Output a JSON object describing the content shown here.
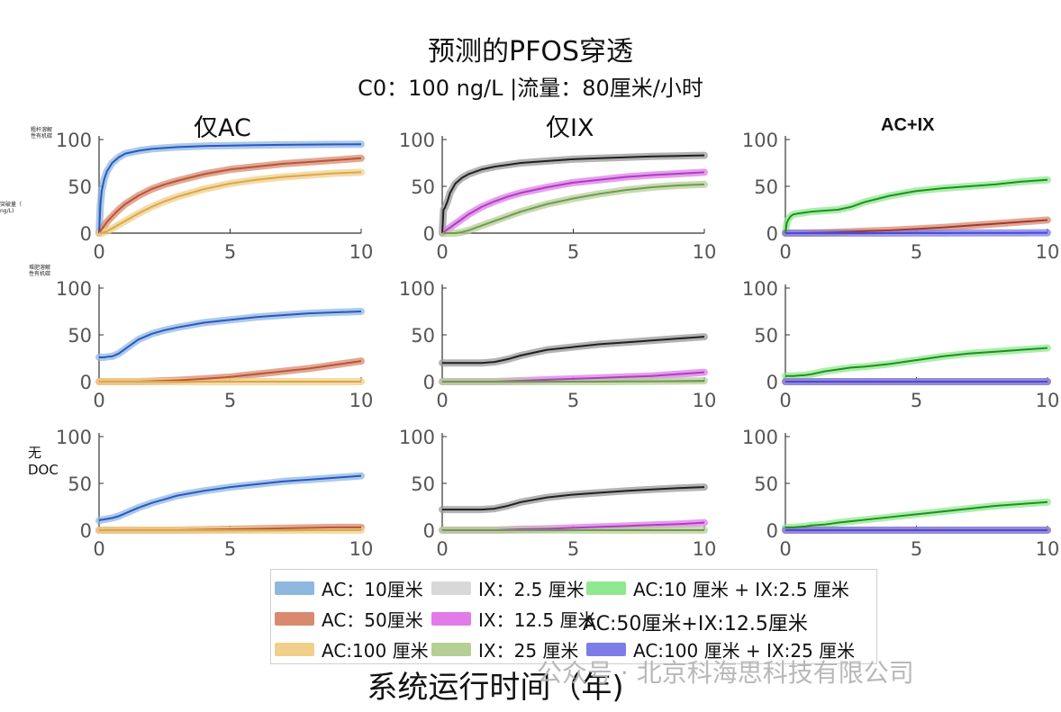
{
  "title": "预测的PFOS穿透",
  "subtitle": "C0：100 ng/L |流量：80厘米/小时",
  "column_titles": [
    "仅AC",
    "仅IX",
    "AC+IX"
  ],
  "row_notes": [
    "粗杆溶解\n性有机碳",
    "突破量（\nng/L)",
    "堆肥溶解\n性有机碳"
  ],
  "row_label_none": "无\nDOC",
  "xlabel": "系统运行时间（年)",
  "watermark": "公众号 · 北京科海思科技有限公司",
  "legend": [
    {
      "label": "AC：10厘米",
      "color": "#8fb8de"
    },
    {
      "label": "AC：50厘米",
      "color": "#d98a6e"
    },
    {
      "label": "AC:100 厘米",
      "color": "#f0cf8a"
    },
    {
      "label": "IX：2.5 厘米",
      "color": "#d8d8d8"
    },
    {
      "label": "IX：12.5 厘米",
      "color": "#e07be8"
    },
    {
      "label": "IX：25 厘米",
      "color": "#b5cf95"
    },
    {
      "label": "AC:10 厘米 + IX:2.5 厘米",
      "color": "#8fe88f"
    },
    {
      "label": "AC:50厘米+IX:12.5厘米",
      "color": "#ffffff"
    },
    {
      "label": "AC:100 厘米 + IX:25 厘米",
      "color": "#7d7de8"
    }
  ],
  "chart_data": {
    "type": "line",
    "x": [
      0,
      0.05,
      0.1,
      0.2,
      0.3,
      0.5,
      0.75,
      1,
      1.5,
      2,
      2.5,
      3,
      4,
      5,
      6,
      7,
      8,
      9,
      10
    ],
    "xlim": [
      0,
      10
    ],
    "ylim": [
      0,
      100
    ],
    "xticks": [
      0,
      5,
      10
    ],
    "yticks": [
      0,
      50,
      100
    ],
    "xlabel": "系统运行时间（年)",
    "panels": [
      {
        "row": 0,
        "col": 0,
        "series": [
          {
            "name": "AC：10厘米",
            "color": "#2a55c8",
            "band": "#8fb8de",
            "values": [
              0,
              30,
              45,
              58,
              66,
              75,
              81,
              85,
              88,
              90,
              91,
              92,
              93,
              93.5,
              94,
              94.3,
              94.6,
              94.8,
              95
            ]
          },
          {
            "name": "AC：50厘米",
            "color": "#b8553a",
            "band": "#d98a6e",
            "values": [
              0,
              2,
              4,
              8,
              12,
              18,
              25,
              31,
              40,
              47,
              52,
              56,
              63,
              68,
              71,
              74,
              76,
              78,
              80
            ]
          },
          {
            "name": "AC:100 厘米",
            "color": "#d9a84a",
            "band": "#f0cf8a",
            "values": [
              0,
              0,
              0,
              1,
              2,
              5,
              9,
              13,
              21,
              28,
              34,
              39,
              47,
              53,
              57,
              60,
              62,
              64,
              65
            ]
          }
        ]
      },
      {
        "row": 0,
        "col": 1,
        "series": [
          {
            "name": "IX：2.5 厘米",
            "color": "#202020",
            "band": "#9a9a9a",
            "values": [
              0,
              25,
              27,
              34,
              43,
              53,
              59,
              63,
              68,
              71,
              73,
              75,
              77,
              79,
              80,
              81,
              82,
              82.5,
              83
            ]
          },
          {
            "name": "IX：12.5 厘米",
            "color": "#a93fc0",
            "band": "#e07be8",
            "values": [
              0,
              1,
              2,
              4,
              6,
              10,
              15,
              20,
              28,
              34,
              39,
              43,
              49,
              54,
              57,
              60,
              62,
              63.5,
              65
            ]
          },
          {
            "name": "IX：25 厘米",
            "color": "#6f9a55",
            "band": "#b5cf95",
            "values": [
              0,
              0,
              0,
              0,
              0,
              0,
              1,
              3,
              8,
              13,
              18,
              23,
              31,
              37,
              42,
              46,
              49,
              51,
              52
            ]
          }
        ]
      },
      {
        "row": 0,
        "col": 2,
        "series": [
          {
            "name": "AC:10 厘米 + IX:2.5 厘米",
            "color": "#1f8f1f",
            "band": "#8fe88f",
            "values": [
              0,
              10,
              14,
              18,
              20,
              21,
              22,
              23,
              24,
              25,
              28,
              33,
              40,
              45,
              48,
              50,
              52,
              55,
              57
            ]
          },
          {
            "name": "AC:50厘米+IX:12.5厘米",
            "color": "#a03a30",
            "band": "#d98a6e",
            "values": [
              0,
              0,
              0,
              0,
              0,
              0,
              0,
              0.2,
              0.5,
              1,
              1.5,
              2,
              3,
              4.5,
              6,
              8,
              10,
              12,
              14
            ]
          },
          {
            "name": "AC:100 厘米 + IX:25 厘米",
            "color": "#4a4ad8",
            "band": "#7d7de8",
            "values": [
              0,
              0,
              0,
              0,
              0,
              0,
              0,
              0,
              0,
              0,
              0,
              0,
              0,
              0.1,
              0.1,
              0.2,
              0.2,
              0.3,
              0.4
            ]
          }
        ]
      },
      {
        "row": 1,
        "col": 0,
        "series": [
          {
            "name": "AC：10厘米",
            "color": "#2a55c8",
            "band": "#8fb8de",
            "values": [
              26,
              26,
              26,
              26,
              26.5,
              27,
              30,
              35,
              45,
              51,
              55,
              58,
              63,
              66,
              69,
              71,
              73,
              74,
              75
            ]
          },
          {
            "name": "AC：50厘米",
            "color": "#b8553a",
            "band": "#d98a6e",
            "values": [
              0,
              0,
              0,
              0,
              0,
              0,
              0,
              0,
              0,
              0.5,
              1,
              1.5,
              3,
              5,
              8,
              11,
              14,
              18,
              22
            ]
          },
          {
            "name": "AC:100 厘米",
            "color": "#d9a84a",
            "band": "#f0cf8a",
            "values": [
              0,
              0,
              0,
              0,
              0,
              0,
              0,
              0,
              0,
              0,
              0,
              0,
              0,
              0,
              0,
              0,
              0,
              0,
              0
            ]
          }
        ]
      },
      {
        "row": 1,
        "col": 1,
        "series": [
          {
            "name": "IX：2.5 厘米",
            "color": "#202020",
            "band": "#9a9a9a",
            "values": [
              20,
              20,
              20,
              20,
              20,
              20,
              20,
              20,
              20,
              21,
              24,
              28,
              34,
              37,
              40,
              42,
              44,
              46,
              48
            ]
          },
          {
            "name": "IX：12.5 厘米",
            "color": "#a93fc0",
            "band": "#e07be8",
            "values": [
              0,
              0,
              0,
              0,
              0,
              0,
              0,
              0,
              0,
              0,
              0.5,
              1,
              2,
              3,
              4,
              5,
              6,
              8,
              10
            ]
          },
          {
            "name": "IX：25 厘米",
            "color": "#6f9a55",
            "band": "#b5cf95",
            "values": [
              0,
              0,
              0,
              0,
              0,
              0,
              0,
              0,
              0,
              0,
              0,
              0,
              0,
              0,
              0,
              0.2,
              0.4,
              0.6,
              1
            ]
          }
        ]
      },
      {
        "row": 1,
        "col": 2,
        "series": [
          {
            "name": "AC:10 厘米 + IX:2.5 厘米",
            "color": "#1f8f1f",
            "band": "#8fe88f",
            "values": [
              6,
              6,
              6,
              6,
              6,
              6.5,
              7,
              8,
              11,
              13,
              15,
              16,
              19,
              23,
              27,
              30,
              32,
              34,
              36
            ]
          },
          {
            "name": "AC:50厘米+IX:12.5厘米",
            "color": "#a03a30",
            "band": "#d98a6e",
            "values": [
              0,
              0,
              0,
              0,
              0,
              0,
              0,
              0,
              0,
              0,
              0,
              0,
              0,
              0,
              0,
              0,
              0,
              0,
              0
            ]
          },
          {
            "name": "AC:100 厘米 + IX:25 厘米",
            "color": "#4a4ad8",
            "band": "#7d7de8",
            "values": [
              0,
              0,
              0,
              0,
              0,
              0,
              0,
              0,
              0,
              0,
              0,
              0,
              0,
              0,
              0,
              0,
              0,
              0,
              0
            ]
          }
        ]
      },
      {
        "row": 2,
        "col": 0,
        "series": [
          {
            "name": "AC：10厘米",
            "color": "#2a55c8",
            "band": "#8fb8de",
            "values": [
              10,
              11,
              11,
              11.5,
              12,
              13,
              15,
              18,
              24,
              29,
              33,
              37,
              42,
              46,
              49,
              52,
              54,
              56,
              58
            ]
          },
          {
            "name": "AC：50厘米",
            "color": "#b8553a",
            "band": "#d98a6e",
            "values": [
              0,
              0,
              0,
              0,
              0,
              0,
              0,
              0,
              0,
              0,
              0,
              0,
              0.5,
              1,
              1.5,
              2,
              2.5,
              3,
              3
            ]
          },
          {
            "name": "AC:100 厘米",
            "color": "#d9a84a",
            "band": "#f0cf8a",
            "values": [
              0,
              0,
              0,
              0,
              0,
              0,
              0,
              0,
              0,
              0,
              0,
              0,
              0,
              0,
              0,
              0,
              0,
              0,
              0
            ]
          }
        ]
      },
      {
        "row": 2,
        "col": 1,
        "series": [
          {
            "name": "IX：2.5 厘米",
            "color": "#202020",
            "band": "#9a9a9a",
            "values": [
              22,
              22,
              22,
              22,
              22,
              22,
              22,
              22,
              22,
              23,
              26,
              30,
              35,
              38,
              40,
              42,
              43.5,
              45,
              46
            ]
          },
          {
            "name": "IX：12.5 厘米",
            "color": "#a93fc0",
            "band": "#e07be8",
            "values": [
              0,
              0,
              0,
              0,
              0,
              0,
              0,
              0,
              0,
              0,
              0.5,
              1,
              1.5,
              2.5,
              3.5,
              4.5,
              5.5,
              6.5,
              8
            ]
          },
          {
            "name": "IX：25 厘米",
            "color": "#6f9a55",
            "band": "#b5cf95",
            "values": [
              0,
              0,
              0,
              0,
              0,
              0,
              0,
              0,
              0,
              0,
              0,
              0,
              0,
              0,
              0,
              0,
              0,
              0,
              0
            ]
          }
        ]
      },
      {
        "row": 2,
        "col": 2,
        "series": [
          {
            "name": "AC:10 厘米 + IX:2.5 厘米",
            "color": "#1f8f1f",
            "band": "#8fe88f",
            "values": [
              3,
              3,
              3,
              3,
              3,
              3.5,
              4,
              5,
              6,
              8,
              9.5,
              11,
              14,
              17,
              20,
              23,
              26,
              28,
              30
            ]
          },
          {
            "name": "AC:50厘米+IX:12.5厘米",
            "color": "#a03a30",
            "band": "#d98a6e",
            "values": [
              0,
              0,
              0,
              0,
              0,
              0,
              0,
              0,
              0,
              0,
              0,
              0,
              0,
              0,
              0,
              0,
              0,
              0,
              0
            ]
          },
          {
            "name": "AC:100 厘米 + IX:25 厘米",
            "color": "#4a4ad8",
            "band": "#7d7de8",
            "values": [
              0,
              0,
              0,
              0,
              0,
              0,
              0,
              0,
              0,
              0,
              0,
              0,
              0,
              0,
              0,
              0,
              0,
              0,
              0
            ]
          }
        ]
      }
    ]
  }
}
